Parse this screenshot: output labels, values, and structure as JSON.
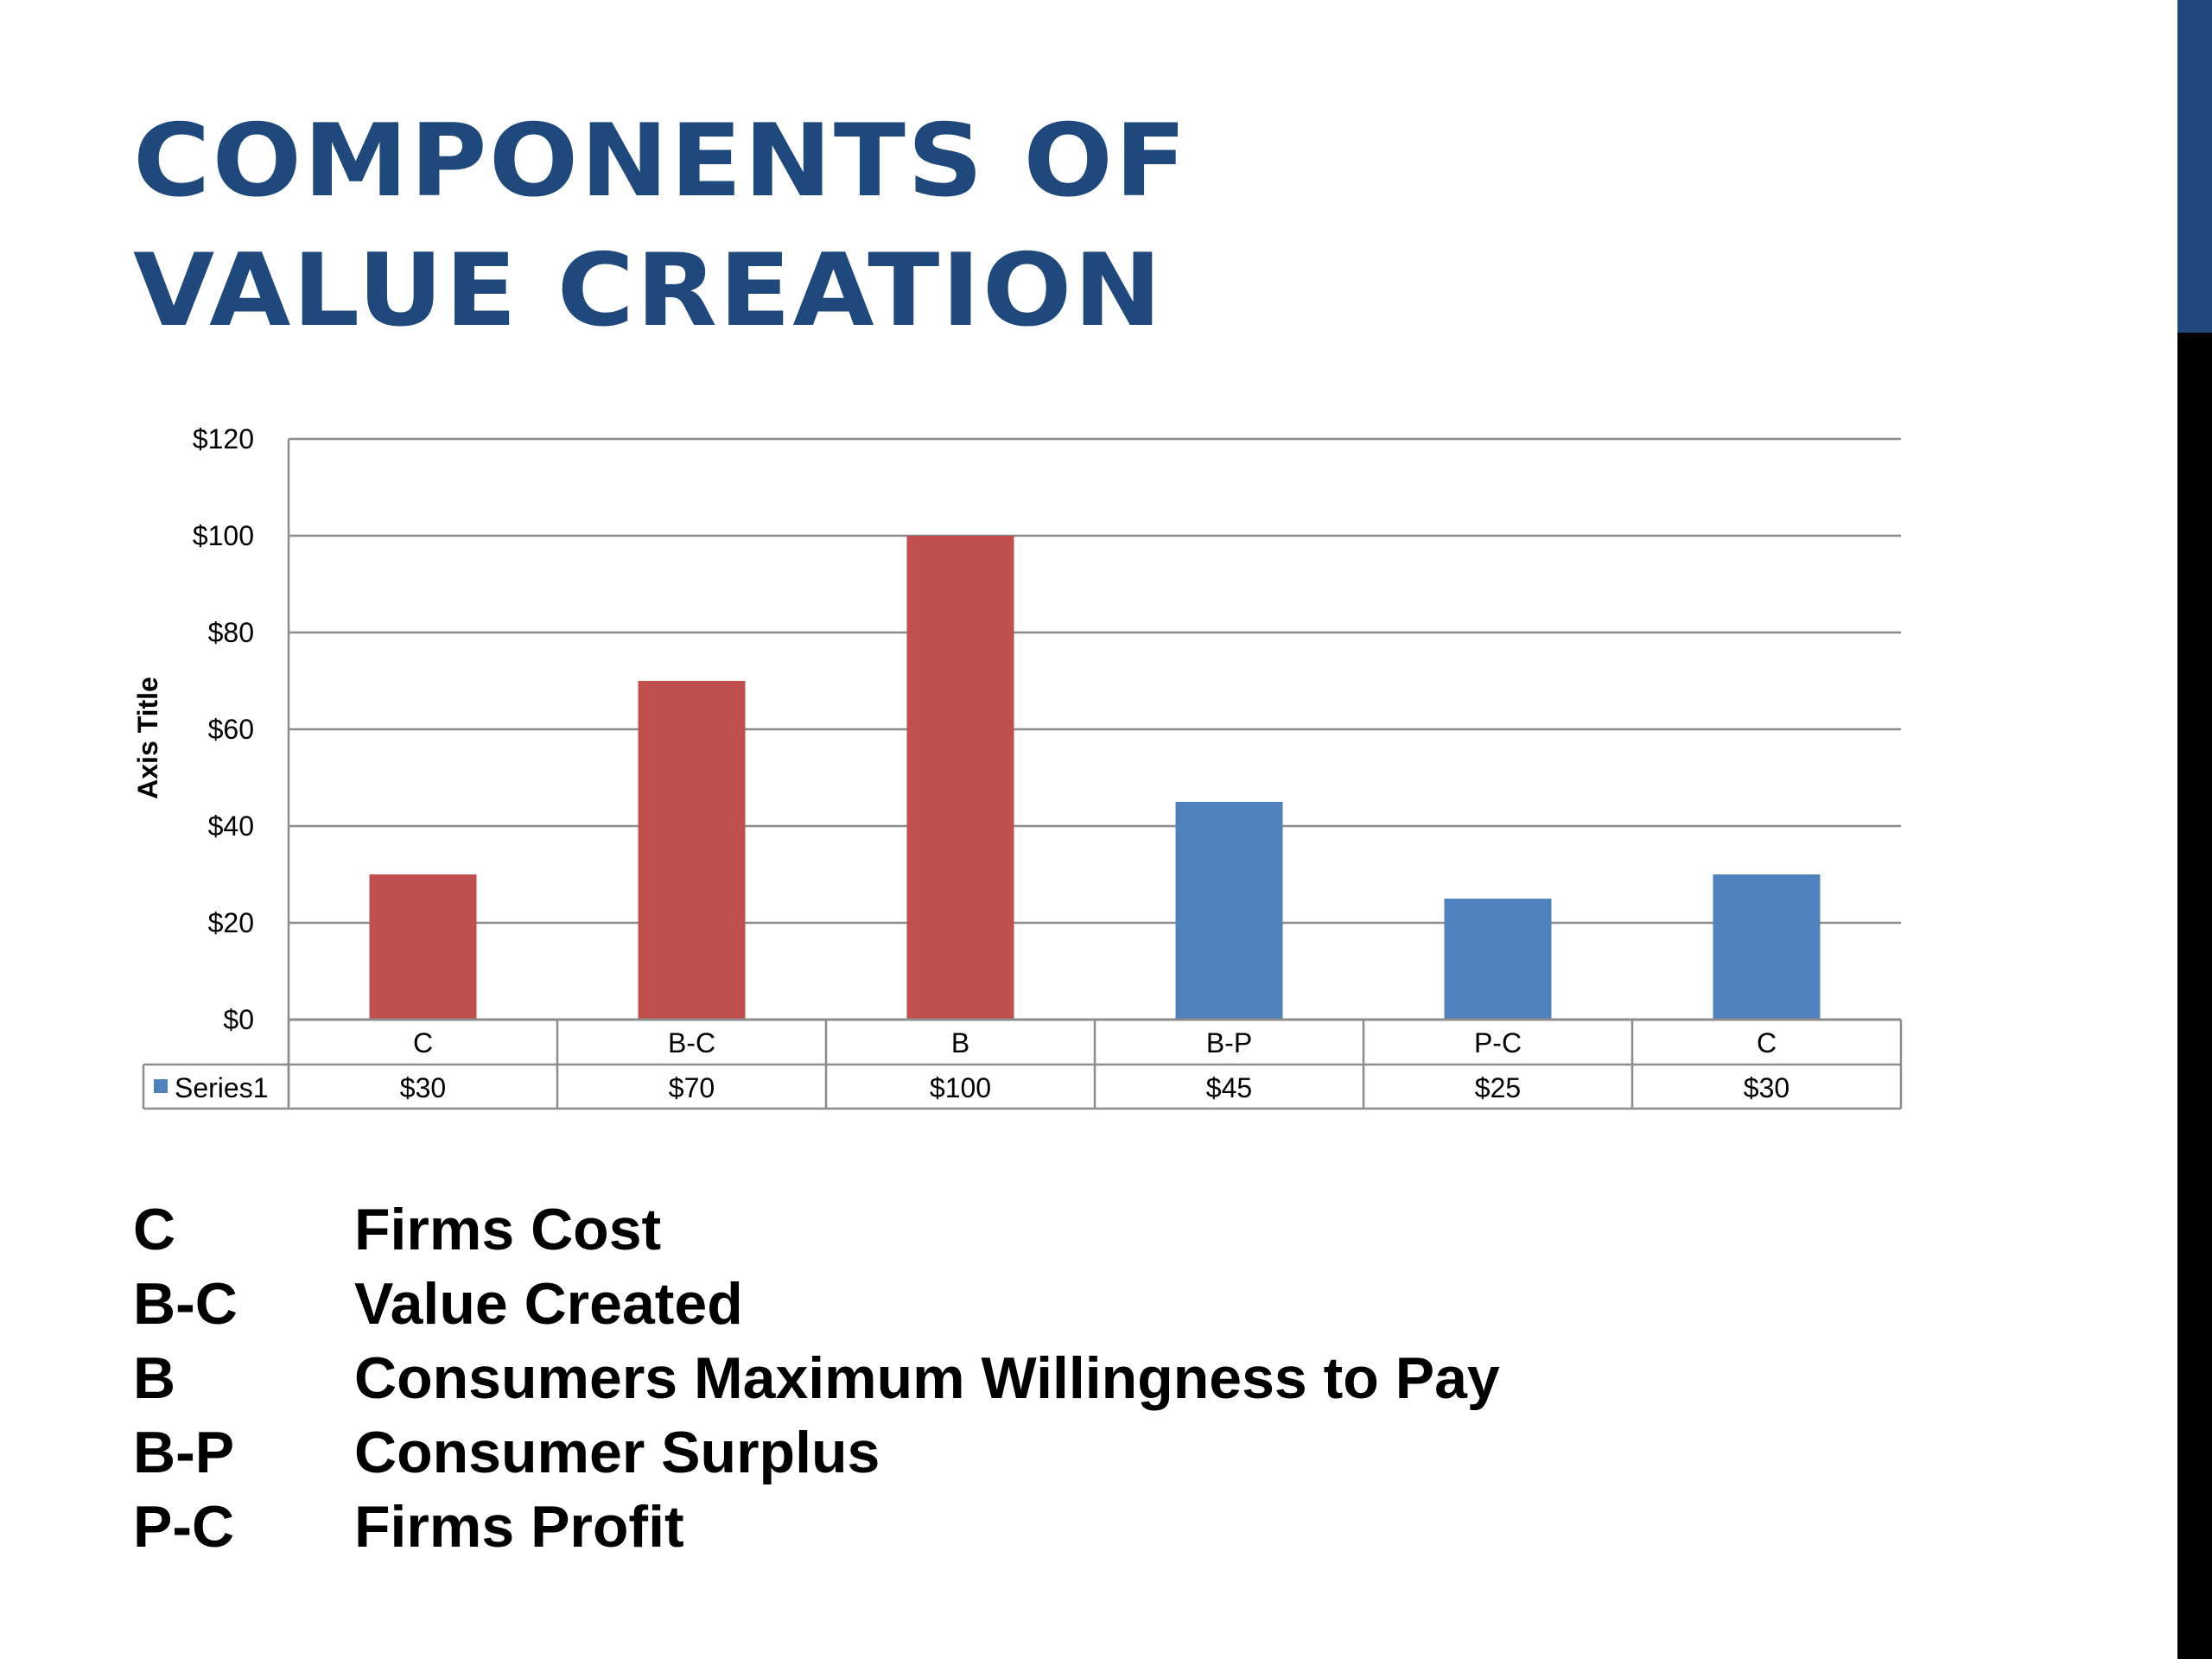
{
  "slide": {
    "title_lines": [
      "COMPONENTS OF",
      "VALUE CREATION"
    ],
    "accent_color": "#1f497d",
    "dark_bar_color": "#000000"
  },
  "chart_data": {
    "type": "bar",
    "categories": [
      "C",
      "B-C",
      "B",
      "B-P",
      "P-C",
      "C"
    ],
    "series": [
      {
        "name": "Series1",
        "values": [
          30,
          70,
          100,
          45,
          25,
          30
        ]
      }
    ],
    "data_labels": [
      "$30",
      "$70",
      "$100",
      "$45",
      "$25",
      "$30"
    ],
    "bar_colors": [
      "#c0504d",
      "#c0504d",
      "#c0504d",
      "#4f81bd",
      "#4f81bd",
      "#4f81bd"
    ],
    "legend_marker_color": "#4f81bd",
    "ylabel": "Axis Title",
    "ylim": [
      0,
      120
    ],
    "yticks": [
      0,
      20,
      40,
      60,
      80,
      100,
      120
    ],
    "ytick_labels": [
      "$0",
      "$20",
      "$40",
      "$60",
      "$80",
      "$100",
      "$120"
    ],
    "grid": true,
    "data_table": true
  },
  "glossary": [
    {
      "code": "C",
      "description": "Firms Cost"
    },
    {
      "code": "B-C",
      "description": "Value Created"
    },
    {
      "code": "B",
      "description": "Consumers Maximum Willingness to Pay"
    },
    {
      "code": "B-P",
      "description": "Consumer Surplus"
    },
    {
      "code": "P-C",
      "description": "Firms Profit"
    }
  ]
}
